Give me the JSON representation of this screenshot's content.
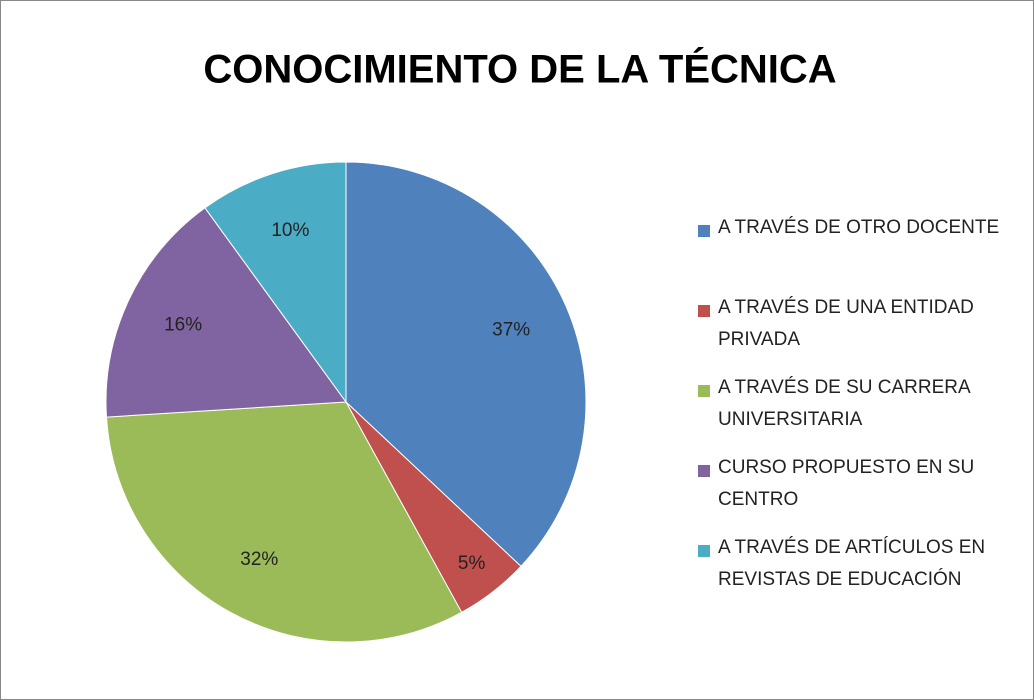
{
  "chart_data": {
    "type": "pie",
    "title": "CONOCIMIENTO DE LA TÉCNICA",
    "categories": [
      "A TRAVÉS DE OTRO DOCENTE",
      "A TRAVÉS DE UNA ENTIDAD PRIVADA",
      "A TRAVÉS DE SU CARRERA UNIVERSITARIA",
      "CURSO PROPUESTO EN SU CENTRO",
      "A TRAVÉS DE ARTÍCULOS EN REVISTAS DE EDUCACIÓN"
    ],
    "values": [
      37,
      5,
      32,
      16,
      10
    ],
    "value_labels": [
      "37%",
      "5%",
      "32%",
      "16%",
      "10%"
    ],
    "colors": [
      "#4f81bd",
      "#c0504d",
      "#9bbb59",
      "#8064a2",
      "#4bacc6"
    ],
    "legend": "right"
  }
}
